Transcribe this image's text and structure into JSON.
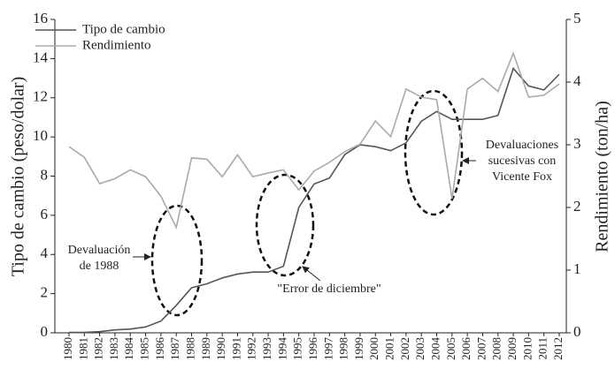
{
  "chart_data": {
    "type": "line",
    "categories": [
      "1980",
      "1981",
      "1982",
      "1983",
      "1984",
      "1985",
      "1986",
      "1987",
      "1988",
      "1989",
      "1990",
      "1991",
      "1992",
      "1993",
      "1994",
      "1995",
      "1996",
      "1997",
      "1998",
      "1999",
      "2000",
      "2001",
      "2002",
      "2003",
      "2004",
      "2005",
      "2006",
      "2007",
      "2008",
      "2009",
      "2010",
      "2011",
      "2012"
    ],
    "series": [
      {
        "name": "Tipo de cambio",
        "color": "#555555",
        "values": [
          0.02,
          0.02,
          0.06,
          0.15,
          0.19,
          0.3,
          0.6,
          1.4,
          2.3,
          2.5,
          2.8,
          3.0,
          3.1,
          3.1,
          3.4,
          6.4,
          7.6,
          7.9,
          9.1,
          9.6,
          9.5,
          9.3,
          9.7,
          10.8,
          11.3,
          10.9,
          10.9,
          10.9,
          11.1,
          13.5,
          12.6,
          12.4,
          13.2
        ]
      },
      {
        "name": "Rendimiento",
        "color": "#aaaaaa",
        "axis": "y2",
        "values": [
          2.97,
          2.8,
          2.38,
          2.46,
          2.6,
          2.49,
          2.18,
          1.68,
          2.79,
          2.77,
          2.49,
          2.84,
          2.49,
          2.55,
          2.6,
          2.28,
          2.58,
          2.72,
          2.89,
          3.01,
          3.38,
          3.13,
          3.89,
          3.76,
          3.72,
          2.14,
          3.89,
          4.06,
          3.85,
          4.46,
          3.76,
          3.79,
          3.97
        ]
      }
    ],
    "ylabel": "Tipo de cambio (peso/dolar)",
    "y2label": "Rendimiento (ton/ha)",
    "ylim": [
      0,
      16
    ],
    "yticks": [
      0,
      2,
      4,
      6,
      8,
      10,
      12,
      14,
      16
    ],
    "y2lim": [
      0,
      5
    ],
    "y2ticks": [
      0,
      1,
      2,
      3,
      4,
      5
    ],
    "legend": "upper left",
    "annotations": [
      {
        "lines": [
          "Devaluación",
          "de 1988"
        ]
      },
      {
        "lines": [
          "\"Error de diciembre\""
        ]
      },
      {
        "lines": [
          "Devaluaciones",
          "sucesivas con",
          "Vicente Fox"
        ]
      }
    ]
  }
}
